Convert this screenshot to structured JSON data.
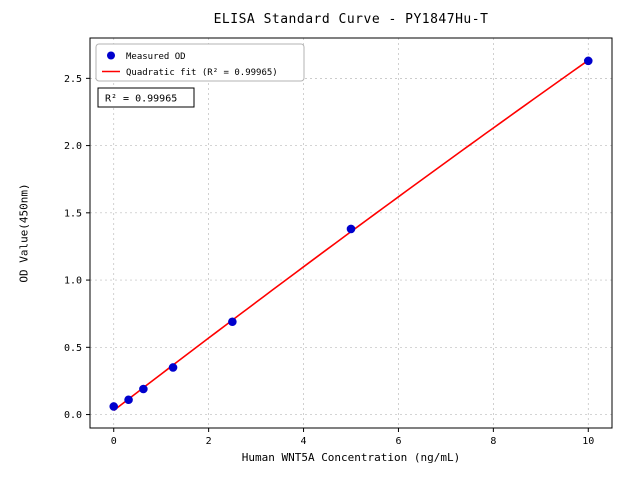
{
  "chart_data": {
    "type": "scatter",
    "title": "ELISA Standard Curve - PY1847Hu-T",
    "xlabel": "Human WNT5A Concentration (ng/mL)",
    "ylabel": "OD Value(450nm)",
    "xlim": [
      -0.5,
      10.5
    ],
    "ylim": [
      -0.1,
      2.8
    ],
    "xticks": [
      0,
      2,
      4,
      6,
      8,
      10
    ],
    "xtick_labels": [
      "0",
      "2",
      "4",
      "6",
      "8",
      "10"
    ],
    "yticks": [
      0,
      0.5,
      1.0,
      1.5,
      2.0,
      2.5
    ],
    "ytick_labels": [
      "0.0",
      "0.5",
      "1.0",
      "1.5",
      "2.0",
      "2.5"
    ],
    "grid": true,
    "legend": {
      "position": "upper-left",
      "entries": [
        {
          "label": "Measured OD",
          "marker": "circle",
          "color": "#0000cd"
        },
        {
          "label": "Quadratic fit (R² = 0.99965)",
          "marker": "line",
          "color": "#ff0000"
        }
      ]
    },
    "annotation": "R² = 0.99965",
    "series": [
      {
        "name": "Measured OD",
        "type": "scatter",
        "color": "#0000cd",
        "x": [
          0,
          0.313,
          0.625,
          1.25,
          2.5,
          5,
          10
        ],
        "y": [
          0.06,
          0.11,
          0.19,
          0.35,
          0.69,
          1.38,
          2.63
        ]
      },
      {
        "name": "Quadratic fit",
        "type": "quadratic-fit",
        "color": "#ff0000",
        "r_squared": 0.99965
      }
    ]
  }
}
